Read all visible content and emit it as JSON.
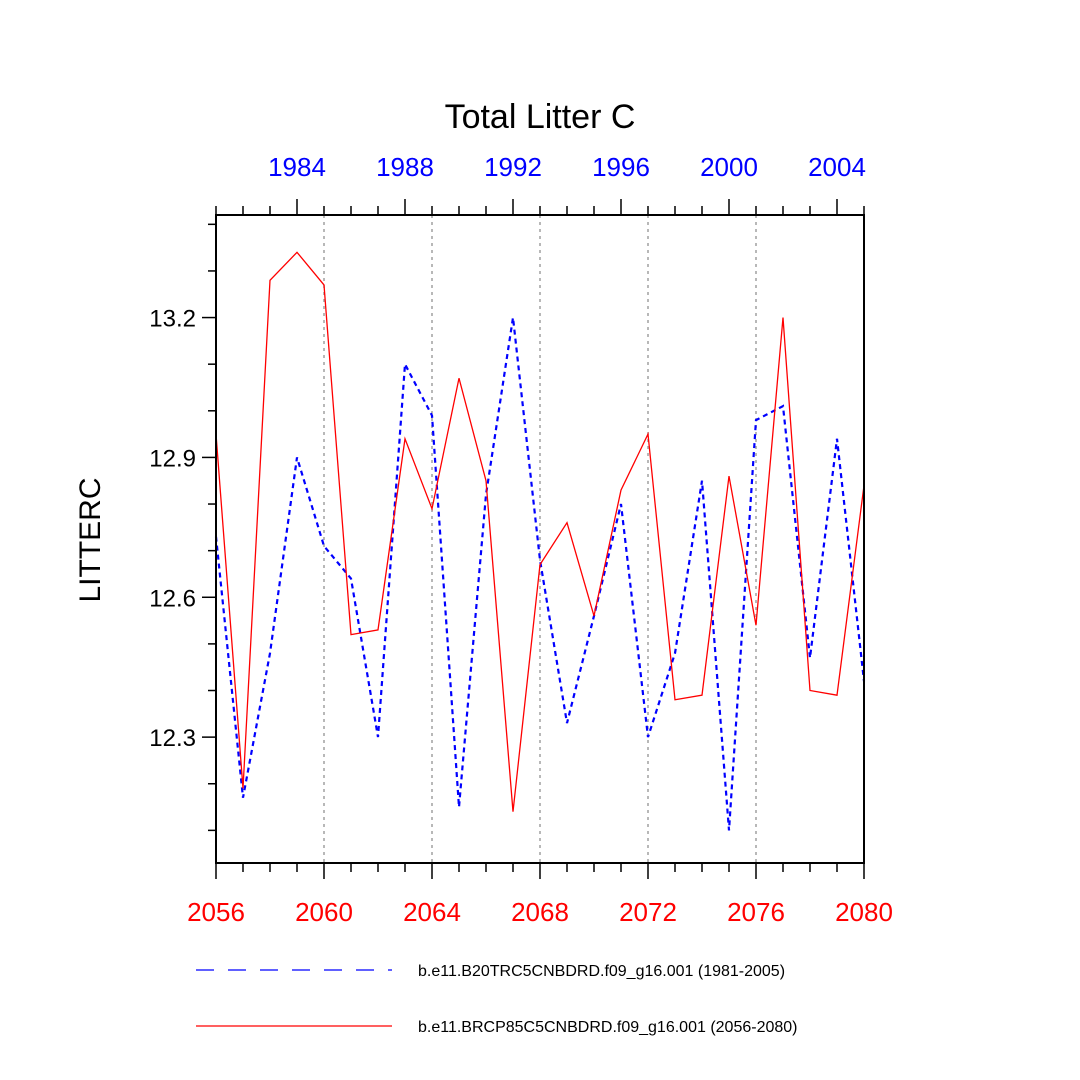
{
  "chart_data": {
    "type": "line",
    "title": "Total Litter C",
    "ylabel": "LITTERC",
    "xlabel": "",
    "ylim": [
      12.03,
      13.42
    ],
    "yticks": [
      12.3,
      12.6,
      12.9,
      13.2
    ],
    "ytick_labels": [
      "12.3",
      "12.6",
      "12.9",
      "13.2"
    ],
    "bottom_axis": {
      "range": [
        2056,
        2080
      ],
      "ticks": [
        2056,
        2060,
        2064,
        2068,
        2072,
        2076,
        2080
      ],
      "labels": [
        "2056",
        "2060",
        "2064",
        "2068",
        "2072",
        "2076",
        "2080"
      ],
      "color": "#ff0000"
    },
    "top_axis": {
      "range": [
        1981,
        2005
      ],
      "ticks": [
        1984,
        1988,
        1992,
        1996,
        2000,
        2004
      ],
      "labels": [
        "1984",
        "1988",
        "1992",
        "1996",
        "2000",
        "2004"
      ],
      "color": "#0000ff"
    },
    "gridlines_x": [
      2060,
      2064,
      2068,
      2072,
      2076
    ],
    "legend_position": "bottom",
    "series": [
      {
        "name": "b.e11.B20TRC5CNBDRD.f09_g16.001 (1981-2005)",
        "color": "#0000ff",
        "style": "dashed",
        "axis": "top",
        "x": [
          1981,
          1982,
          1983,
          1984,
          1985,
          1986,
          1987,
          1988,
          1989,
          1990,
          1991,
          1992,
          1993,
          1994,
          1995,
          1996,
          1997,
          1998,
          1999,
          2000,
          2001,
          2002,
          2003,
          2004,
          2005
        ],
        "values": [
          12.73,
          12.17,
          12.48,
          12.9,
          12.71,
          12.64,
          12.3,
          13.1,
          12.99,
          12.15,
          12.82,
          13.2,
          12.68,
          12.33,
          12.56,
          12.8,
          12.3,
          12.48,
          12.85,
          12.1,
          12.98,
          13.01,
          12.47,
          12.94,
          12.42
        ]
      },
      {
        "name": "b.e11.BRCP85C5CNBDRD.f09_g16.001 (2056-2080)",
        "color": "#ff0000",
        "style": "solid",
        "axis": "bottom",
        "x": [
          2056,
          2057,
          2058,
          2059,
          2060,
          2061,
          2062,
          2063,
          2064,
          2065,
          2066,
          2067,
          2068,
          2069,
          2070,
          2071,
          2072,
          2073,
          2074,
          2075,
          2076,
          2077,
          2078,
          2079,
          2080
        ],
        "values": [
          12.95,
          12.19,
          13.28,
          13.34,
          13.27,
          12.52,
          12.53,
          12.94,
          12.79,
          13.07,
          12.85,
          12.14,
          12.67,
          12.76,
          12.56,
          12.83,
          12.95,
          12.38,
          12.39,
          12.86,
          12.54,
          13.2,
          12.4,
          12.39,
          12.84
        ]
      }
    ]
  }
}
